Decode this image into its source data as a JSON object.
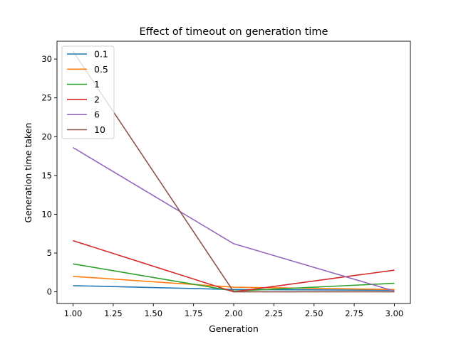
{
  "chart_data": {
    "type": "line",
    "title": "Effect of timeout on generation time",
    "xlabel": "Generation",
    "ylabel": "Generation time taken",
    "xlim": [
      0.9,
      3.1
    ],
    "ylim": [
      -1.5,
      32.3
    ],
    "xticks": [
      1.0,
      1.25,
      1.5,
      1.75,
      2.0,
      2.25,
      2.5,
      2.75,
      3.0
    ],
    "xtick_labels": [
      "1.00",
      "1.25",
      "1.50",
      "1.75",
      "2.00",
      "2.25",
      "2.50",
      "2.75",
      "3.00"
    ],
    "yticks": [
      0,
      5,
      10,
      15,
      20,
      25,
      30
    ],
    "ytick_labels": [
      "0",
      "5",
      "10",
      "15",
      "20",
      "25",
      "30"
    ],
    "grid": false,
    "legend_position": "top-left",
    "x": [
      1,
      2,
      3
    ],
    "series": [
      {
        "name": "0.1",
        "color": "#1f77b4",
        "values": [
          0.8,
          0.3,
          0.2
        ]
      },
      {
        "name": "0.5",
        "color": "#ff7f0e",
        "values": [
          2.0,
          0.6,
          0.3
        ]
      },
      {
        "name": "1",
        "color": "#2ca02c",
        "values": [
          3.6,
          0.1,
          1.1
        ]
      },
      {
        "name": "2",
        "color": "#d62728",
        "values": [
          6.6,
          0.0,
          2.8
        ]
      },
      {
        "name": "6",
        "color": "#9467bd",
        "values": [
          18.6,
          6.2,
          0.1
        ]
      },
      {
        "name": "10",
        "color": "#8c564b",
        "values": [
          31.0,
          0.0,
          0.0
        ]
      }
    ]
  }
}
